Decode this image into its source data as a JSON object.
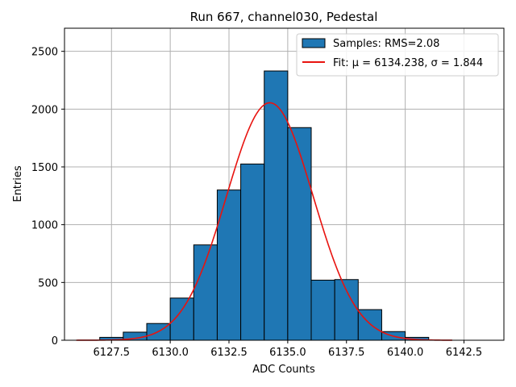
{
  "chart_data": {
    "type": "bar",
    "title": "Run 667, channel030, Pedestal",
    "xlabel": "ADC Counts",
    "ylabel": "Entries",
    "xlim": [
      6125.5,
      6144.2
    ],
    "ylim": [
      0,
      2700
    ],
    "grid": true,
    "legend_placement": "top-right",
    "x_ticks": [
      6127.5,
      6130.0,
      6132.5,
      6135.0,
      6137.5,
      6140.0,
      6142.5
    ],
    "x_tick_labels": [
      "6127.5",
      "6130.0",
      "6132.5",
      "6135.0",
      "6137.5",
      "6140.0",
      "6142.5"
    ],
    "y_ticks": [
      0,
      500,
      1000,
      1500,
      2000,
      2500
    ],
    "y_tick_labels": [
      "0",
      "500",
      "1000",
      "1500",
      "2000",
      "2500"
    ],
    "bin_edges": [
      6127,
      6128,
      6129,
      6130,
      6131,
      6132,
      6133,
      6134,
      6135,
      6136,
      6137,
      6138,
      6139,
      6140,
      6141
    ],
    "bin_counts": [
      25,
      70,
      145,
      365,
      825,
      1300,
      1525,
      2330,
      1840,
      520,
      525,
      265,
      75,
      25
    ],
    "fit": {
      "mu": 6134.238,
      "sigma": 1.844,
      "amplitude": 2055,
      "x_range": [
        6126,
        6142
      ]
    },
    "legend": [
      {
        "label": "Samples: RMS=2.08",
        "kind": "patch",
        "color": "#1f77b4"
      },
      {
        "label": "Fit: μ = 6134.238, σ = 1.844",
        "kind": "line",
        "color": "#e8130f"
      }
    ],
    "colors": {
      "bar": "#1f77b4",
      "fit": "#e8130f"
    }
  }
}
